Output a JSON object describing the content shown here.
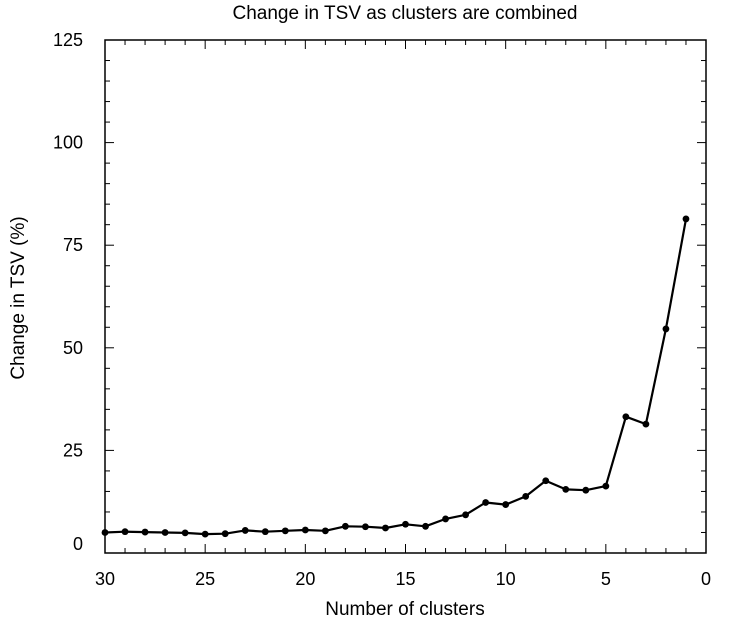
{
  "chart_data": {
    "type": "line",
    "title": "Change in TSV as clusters are combined",
    "xlabel": "Number of clusters",
    "ylabel": "Change in TSV (%)",
    "xlim": [
      30,
      0
    ],
    "ylim": [
      0,
      125
    ],
    "x_ticks": [
      30,
      25,
      20,
      15,
      10,
      5,
      0
    ],
    "y_ticks": [
      125,
      100,
      75,
      50,
      25,
      0
    ],
    "x_tick_labels": [
      "30",
      "25",
      "20",
      "15",
      "10",
      "5",
      "0"
    ],
    "y_tick_labels": [
      "125",
      "100",
      "75",
      "50",
      "25",
      "0"
    ],
    "grid": false,
    "series": [
      {
        "name": "Change in TSV",
        "color": "#000000",
        "x": [
          30,
          29,
          28,
          27,
          26,
          25,
          24,
          23,
          22,
          21,
          20,
          19,
          18,
          17,
          16,
          15,
          14,
          13,
          12,
          11,
          10,
          9,
          8,
          7,
          6,
          5,
          4,
          3,
          2,
          1
        ],
        "y": [
          5.0,
          5.2,
          5.1,
          5.0,
          4.9,
          4.6,
          4.7,
          5.5,
          5.2,
          5.4,
          5.6,
          5.4,
          6.5,
          6.4,
          6.1,
          7.0,
          6.5,
          8.3,
          9.3,
          12.3,
          11.8,
          13.8,
          17.6,
          15.5,
          15.3,
          16.3,
          33.2,
          31.4,
          54.6,
          81.4
        ]
      }
    ]
  }
}
